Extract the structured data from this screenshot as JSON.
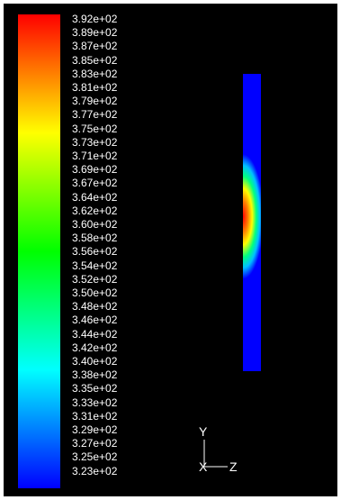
{
  "legend": {
    "labels": [
      "3.92e+02",
      "3.89e+02",
      "3.87e+02",
      "3.85e+02",
      "3.83e+02",
      "3.81e+02",
      "3.79e+02",
      "3.77e+02",
      "3.75e+02",
      "3.73e+02",
      "3.71e+02",
      "3.69e+02",
      "3.67e+02",
      "3.64e+02",
      "3.62e+02",
      "3.60e+02",
      "3.58e+02",
      "3.56e+02",
      "3.54e+02",
      "3.52e+02",
      "3.50e+02",
      "3.48e+02",
      "3.46e+02",
      "3.44e+02",
      "3.42e+02",
      "3.40e+02",
      "3.38e+02",
      "3.35e+02",
      "3.33e+02",
      "3.31e+02",
      "3.29e+02",
      "3.27e+02",
      "3.25e+02",
      "3.23e+02"
    ],
    "max_color": "#ff0000",
    "min_color": "#0000ff"
  },
  "axes": {
    "y_label": "Y",
    "x_label": "X",
    "z_label": "Z"
  },
  "colors": {
    "background": "#000000",
    "text": "#ffffff",
    "field_base": "#0000ff",
    "hotspot_core": "#ff0000"
  }
}
